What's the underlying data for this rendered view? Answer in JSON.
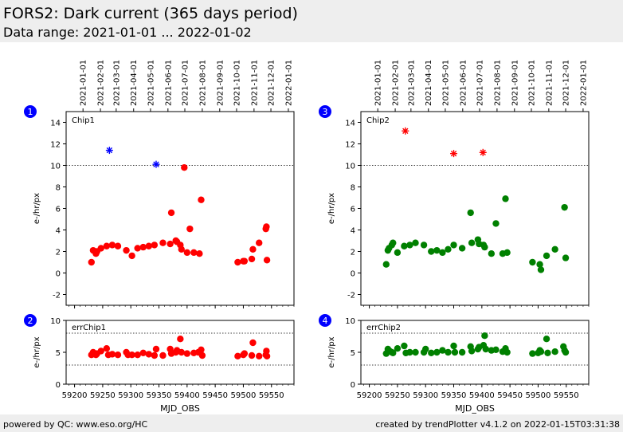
{
  "header": {
    "title": "FORS2: Dark current (365 days period)",
    "subtitle": "Data range: 2021-01-01 ... 2022-01-02"
  },
  "footer": {
    "left": "powered by QC: www.eso.org/HC",
    "right": "created by trendPlotter v4.1.2 on 2022-01-15T03:31:38"
  },
  "chart_data": [
    {
      "type": "scatter",
      "panel_number": "1",
      "label": "Chip1",
      "ylabel": "e-/hr/px",
      "xlabel": "",
      "xlim": [
        59185,
        59590
      ],
      "ylim": [
        -3,
        15
      ],
      "yticks": [
        -2,
        0,
        2,
        4,
        6,
        8,
        10,
        12,
        14
      ],
      "reference_line": 10,
      "marker_color": "#ff0000",
      "outlier_color": "#0000ff",
      "points": [
        [
          59230,
          1.0
        ],
        [
          59233,
          2.1
        ],
        [
          59238,
          1.8
        ],
        [
          59240,
          2.0
        ],
        [
          59247,
          2.3
        ],
        [
          59257,
          2.5
        ],
        [
          59267,
          2.6
        ],
        [
          59277,
          2.5
        ],
        [
          59292,
          2.1
        ],
        [
          59302,
          1.6
        ],
        [
          59312,
          2.3
        ],
        [
          59322,
          2.4
        ],
        [
          59332,
          2.5
        ],
        [
          59342,
          2.6
        ],
        [
          59357,
          2.8
        ],
        [
          59370,
          2.7
        ],
        [
          59380,
          3.0
        ],
        [
          59382,
          2.9
        ],
        [
          59388,
          2.6
        ],
        [
          59390,
          2.2
        ],
        [
          59400,
          1.9
        ],
        [
          59412,
          1.9
        ],
        [
          59422,
          1.8
        ],
        [
          59372,
          5.6
        ],
        [
          59395,
          9.8
        ],
        [
          59405,
          4.1
        ],
        [
          59425,
          6.8
        ],
        [
          59490,
          1.0
        ],
        [
          59500,
          1.1
        ],
        [
          59502,
          1.1
        ],
        [
          59515,
          1.3
        ],
        [
          59517,
          2.2
        ],
        [
          59528,
          2.8
        ],
        [
          59540,
          4.1
        ],
        [
          59541,
          4.3
        ],
        [
          59542,
          1.2
        ]
      ],
      "outliers": [
        [
          59262,
          11.4
        ],
        [
          59345,
          10.1
        ]
      ]
    },
    {
      "type": "scatter",
      "panel_number": "2",
      "label": "errChip1",
      "ylabel": "e-/hr/px",
      "xlabel": "MJD_OBS",
      "xlim": [
        59185,
        59590
      ],
      "ylim": [
        0,
        10
      ],
      "yticks": [
        0,
        5,
        10
      ],
      "reference_lines": [
        3,
        8
      ],
      "marker_color": "#ff0000",
      "points": [
        [
          59230,
          4.6
        ],
        [
          59233,
          5.0
        ],
        [
          59236,
          4.7
        ],
        [
          59238,
          4.6
        ],
        [
          59240,
          4.8
        ],
        [
          59247,
          5.2
        ],
        [
          59257,
          5.6
        ],
        [
          59260,
          4.6
        ],
        [
          59267,
          4.7
        ],
        [
          59277,
          4.6
        ],
        [
          59292,
          5.0
        ],
        [
          59295,
          4.6
        ],
        [
          59302,
          4.6
        ],
        [
          59312,
          4.6
        ],
        [
          59322,
          4.9
        ],
        [
          59332,
          4.7
        ],
        [
          59342,
          4.5
        ],
        [
          59345,
          5.5
        ],
        [
          59357,
          4.5
        ],
        [
          59370,
          5.5
        ],
        [
          59372,
          4.8
        ],
        [
          59380,
          5.0
        ],
        [
          59382,
          5.3
        ],
        [
          59388,
          7.1
        ],
        [
          59390,
          5.0
        ],
        [
          59400,
          4.8
        ],
        [
          59412,
          4.9
        ],
        [
          59420,
          5.0
        ],
        [
          59425,
          5.4
        ],
        [
          59427,
          4.5
        ],
        [
          59490,
          4.4
        ],
        [
          59500,
          4.6
        ],
        [
          59502,
          4.8
        ],
        [
          59515,
          4.5
        ],
        [
          59517,
          6.5
        ],
        [
          59528,
          4.4
        ],
        [
          59540,
          4.6
        ],
        [
          59541,
          5.2
        ],
        [
          59542,
          4.4
        ]
      ]
    },
    {
      "type": "scatter",
      "panel_number": "3",
      "label": "Chip2",
      "ylabel": "e-/hr/px",
      "xlabel": "",
      "xlim": [
        59185,
        59590
      ],
      "ylim": [
        -3,
        15
      ],
      "yticks": [
        -2,
        0,
        2,
        4,
        6,
        8,
        10,
        12,
        14
      ],
      "reference_line": 10,
      "marker_color": "#008000",
      "outlier_color": "#ff0000",
      "points": [
        [
          59230,
          0.8
        ],
        [
          59233,
          2.1
        ],
        [
          59235,
          2.3
        ],
        [
          59240,
          2.6
        ],
        [
          59242,
          2.8
        ],
        [
          59250,
          1.9
        ],
        [
          59262,
          2.5
        ],
        [
          59272,
          2.6
        ],
        [
          59282,
          2.8
        ],
        [
          59297,
          2.6
        ],
        [
          59310,
          2.0
        ],
        [
          59320,
          2.1
        ],
        [
          59330,
          1.9
        ],
        [
          59340,
          2.2
        ],
        [
          59350,
          2.6
        ],
        [
          59365,
          2.3
        ],
        [
          59380,
          5.6
        ],
        [
          59382,
          2.8
        ],
        [
          59393,
          3.1
        ],
        [
          59395,
          2.7
        ],
        [
          59403,
          2.6
        ],
        [
          59405,
          2.4
        ],
        [
          59417,
          1.8
        ],
        [
          59425,
          4.6
        ],
        [
          59437,
          1.8
        ],
        [
          59442,
          6.9
        ],
        [
          59445,
          1.9
        ],
        [
          59490,
          1.0
        ],
        [
          59503,
          0.8
        ],
        [
          59505,
          0.3
        ],
        [
          59515,
          1.6
        ],
        [
          59530,
          2.2
        ],
        [
          59547,
          6.1
        ],
        [
          59549,
          1.4
        ]
      ],
      "outliers": [
        [
          59264,
          13.2
        ],
        [
          59350,
          11.1
        ],
        [
          59402,
          11.2
        ]
      ]
    },
    {
      "type": "scatter",
      "panel_number": "4",
      "label": "errChip2",
      "ylabel": "e-/hr/px",
      "xlabel": "MJD_OBS",
      "xlim": [
        59185,
        59590
      ],
      "ylim": [
        0,
        10
      ],
      "yticks": [
        0,
        5,
        10
      ],
      "reference_lines": [
        3,
        8
      ],
      "marker_color": "#008000",
      "points": [
        [
          59230,
          4.8
        ],
        [
          59233,
          5.5
        ],
        [
          59236,
          5.2
        ],
        [
          59240,
          5.0
        ],
        [
          59242,
          4.9
        ],
        [
          59250,
          5.6
        ],
        [
          59262,
          6.0
        ],
        [
          59265,
          4.9
        ],
        [
          59272,
          5.0
        ],
        [
          59282,
          5.0
        ],
        [
          59297,
          5.0
        ],
        [
          59300,
          5.5
        ],
        [
          59310,
          4.9
        ],
        [
          59320,
          5.0
        ],
        [
          59330,
          5.3
        ],
        [
          59340,
          5.0
        ],
        [
          59350,
          6.0
        ],
        [
          59352,
          5.0
        ],
        [
          59365,
          5.0
        ],
        [
          59380,
          5.9
        ],
        [
          59382,
          5.2
        ],
        [
          59393,
          5.5
        ],
        [
          59395,
          5.8
        ],
        [
          59403,
          6.1
        ],
        [
          59405,
          7.6
        ],
        [
          59407,
          5.5
        ],
        [
          59417,
          5.3
        ],
        [
          59425,
          5.4
        ],
        [
          59437,
          5.1
        ],
        [
          59442,
          5.6
        ],
        [
          59445,
          5.0
        ],
        [
          59490,
          4.8
        ],
        [
          59500,
          4.9
        ],
        [
          59503,
          5.3
        ],
        [
          59505,
          5.1
        ],
        [
          59515,
          7.1
        ],
        [
          59517,
          4.9
        ],
        [
          59530,
          5.1
        ],
        [
          59545,
          5.9
        ],
        [
          59547,
          5.3
        ],
        [
          59549,
          5.0
        ]
      ]
    }
  ],
  "xticks": [
    59200,
    59250,
    59300,
    59350,
    59400,
    59450,
    59500,
    59550
  ],
  "date_ticks": [
    {
      "label": "2021-01-01",
      "mjd": 59215
    },
    {
      "label": "2021-02-01",
      "mjd": 59246
    },
    {
      "label": "2021-03-01",
      "mjd": 59274
    },
    {
      "label": "2021-04-01",
      "mjd": 59305
    },
    {
      "label": "2021-05-01",
      "mjd": 59335
    },
    {
      "label": "2021-06-01",
      "mjd": 59366
    },
    {
      "label": "2021-07-01",
      "mjd": 59396
    },
    {
      "label": "2021-08-01",
      "mjd": 59427
    },
    {
      "label": "2021-09-01",
      "mjd": 59458
    },
    {
      "label": "2021-10-01",
      "mjd": 59488
    },
    {
      "label": "2021-11-01",
      "mjd": 59519
    },
    {
      "label": "2021-12-01",
      "mjd": 59549
    },
    {
      "label": "2022-01-01",
      "mjd": 59580
    }
  ]
}
